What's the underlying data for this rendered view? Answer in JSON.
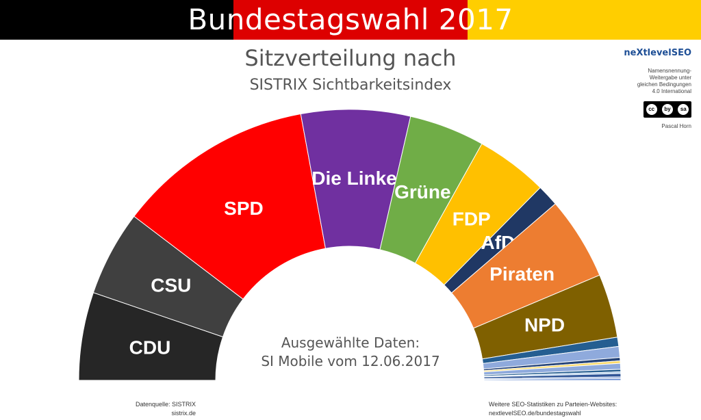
{
  "banner": {
    "title": "Bundestagswahl 2017",
    "colors": [
      "#000000",
      "#dd0000",
      "#ffce00"
    ]
  },
  "title": {
    "line1": "Sitzverteilung nach",
    "line2": "SISTRIX Sichtbarkeitsindex"
  },
  "center": {
    "line1": "Ausgewählte Daten:",
    "line2": "SI Mobile vom 12.06.2017"
  },
  "branding": {
    "logo": "neXtlevelSEO",
    "license_lines": [
      "Namensnennung-",
      "Weitergabe unter",
      "gleichen Bedingungen",
      "4.0 International"
    ],
    "badge": [
      "cc",
      "by",
      "sa"
    ],
    "author": "Pascal Horn"
  },
  "footer": {
    "left_line1": "Datenquelle: SISTRIX",
    "left_line2": "sistrix.de",
    "right_line1": "Weitere SEO-Statistiken zu Parteien-Websites:",
    "right_line2": "nextlevelSEO.de/bundestagswahl"
  },
  "chart_data": {
    "type": "pie",
    "shape": "half-donut (parliament seating)",
    "values_unit": "share of semicircle, %",
    "slices": [
      {
        "label": "CDU",
        "value": 10.5,
        "color": "#262626"
      },
      {
        "label": "CSU",
        "value": 10.2,
        "color": "#404040"
      },
      {
        "label": "SPD",
        "value": 23.5,
        "color": "#ff0000"
      },
      {
        "label": "Die Linke",
        "value": 13.0,
        "color": "#7030a0"
      },
      {
        "label": "Grüne",
        "value": 9.0,
        "color": "#70ad47"
      },
      {
        "label": "FDP",
        "value": 8.6,
        "color": "#ffc000"
      },
      {
        "label": "AfD",
        "value": 2.6,
        "color": "#203864"
      },
      {
        "label": "Piraten",
        "value": 9.9,
        "color": "#ed7d31"
      },
      {
        "label": "NPD",
        "value": 7.6,
        "color": "#7f6000"
      },
      {
        "label": "",
        "value": 1.1,
        "color": "#255e91"
      },
      {
        "label": "",
        "value": 1.3,
        "color": "#8faadc"
      },
      {
        "label": "",
        "value": 0.4,
        "color": "#264478"
      },
      {
        "label": "",
        "value": 0.3,
        "color": "#ffd966"
      },
      {
        "label": "",
        "value": 0.7,
        "color": "#8faadc"
      },
      {
        "label": "",
        "value": 0.3,
        "color": "#255e91"
      },
      {
        "label": "",
        "value": 0.2,
        "color": "#9dc3e6"
      },
      {
        "label": "",
        "value": 0.4,
        "color": "#2f5597"
      },
      {
        "label": "",
        "value": 0.2,
        "color": "#8faadc"
      },
      {
        "label": "",
        "value": 0.2,
        "color": "#4472c4"
      }
    ]
  }
}
